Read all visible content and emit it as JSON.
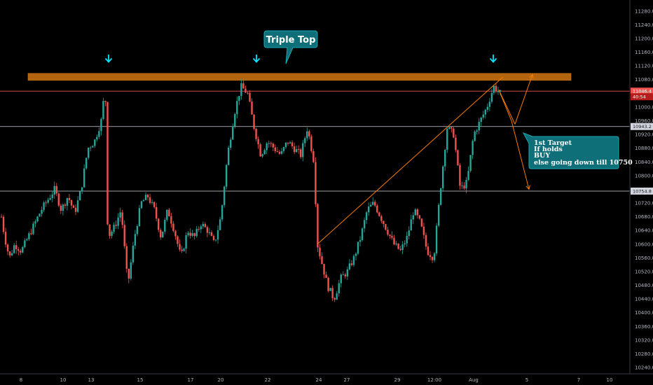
{
  "chart_data": {
    "type": "candlestick",
    "title": "",
    "ylim": [
      10230,
      11300
    ],
    "grid": false,
    "y_ticks": [
      10240,
      10280,
      10320,
      10360,
      10400,
      10440,
      10480,
      10520,
      10560,
      10600,
      10640,
      10680,
      10720,
      10760,
      10800,
      10840,
      10880,
      10920,
      10960,
      11000,
      11040,
      11080,
      11120,
      11160,
      11200,
      11240,
      11280
    ],
    "y_tick_labels": [
      "10240.0",
      "10280.0",
      "10320.0",
      "10360.0",
      "10400.0",
      "10440.0",
      "10480.0",
      "10520.0",
      "10560.0",
      "10600.0",
      "10640.0",
      "10680.0",
      "10720.0",
      "10760.0",
      "10800.0",
      "10840.0",
      "10880.0",
      "10920.0",
      "10960.0",
      "11000.0",
      "11040.0",
      "11080.0",
      "11120.0",
      "11160.0",
      "11200.0",
      "11240.0",
      "11280.0"
    ],
    "x_tick_labels": [
      "8",
      "10",
      "13",
      "15",
      "17",
      "20",
      "22",
      "24",
      "27",
      "29",
      "12:00",
      "Aug",
      "5",
      "7",
      "10"
    ],
    "path_points": [
      [
        0,
        10680
      ],
      [
        0.5,
        10620
      ],
      [
        1.2,
        10560
      ],
      [
        2,
        10600
      ],
      [
        3,
        10580
      ],
      [
        4,
        10620
      ],
      [
        5,
        10660
      ],
      [
        6,
        10700
      ],
      [
        7,
        10730
      ],
      [
        8,
        10760
      ],
      [
        9,
        10700
      ],
      [
        10,
        10740
      ],
      [
        11,
        10690
      ],
      [
        12,
        10760
      ],
      [
        13,
        10880
      ],
      [
        14,
        10900
      ],
      [
        15,
        10960
      ],
      [
        15.6,
        11060
      ],
      [
        16,
        10620
      ],
      [
        17,
        10650
      ],
      [
        18,
        10700
      ],
      [
        19,
        10480
      ],
      [
        20,
        10620
      ],
      [
        21,
        10720
      ],
      [
        22,
        10740
      ],
      [
        23,
        10700
      ],
      [
        24,
        10620
      ],
      [
        25,
        10700
      ],
      [
        26,
        10640
      ],
      [
        27,
        10560
      ],
      [
        28,
        10640
      ],
      [
        29,
        10620
      ],
      [
        30,
        10660
      ],
      [
        31,
        10640
      ],
      [
        32,
        10600
      ],
      [
        33,
        10680
      ],
      [
        34,
        10860
      ],
      [
        35,
        10980
      ],
      [
        36,
        11060
      ],
      [
        37,
        11040
      ],
      [
        38,
        10940
      ],
      [
        39,
        10860
      ],
      [
        40,
        10900
      ],
      [
        41,
        10880
      ],
      [
        42,
        10860
      ],
      [
        43,
        10900
      ],
      [
        44,
        10880
      ],
      [
        45,
        10860
      ],
      [
        46,
        10940
      ],
      [
        47,
        10840
      ],
      [
        47.5,
        10600
      ],
      [
        48,
        10560
      ],
      [
        49,
        10480
      ],
      [
        50,
        10440
      ],
      [
        51,
        10500
      ],
      [
        52,
        10520
      ],
      [
        53,
        10560
      ],
      [
        54,
        10620
      ],
      [
        55,
        10700
      ],
      [
        56,
        10720
      ],
      [
        57,
        10680
      ],
      [
        58,
        10640
      ],
      [
        59,
        10600
      ],
      [
        60,
        10580
      ],
      [
        61,
        10620
      ],
      [
        62,
        10700
      ],
      [
        63,
        10660
      ],
      [
        64,
        10580
      ],
      [
        65,
        10560
      ],
      [
        66,
        10760
      ],
      [
        67,
        10940
      ],
      [
        68,
        10920
      ],
      [
        69,
        10760
      ],
      [
        70,
        10780
      ],
      [
        71,
        10920
      ],
      [
        72,
        10960
      ],
      [
        73,
        11000
      ],
      [
        74,
        11060
      ],
      [
        75,
        11040
      ]
    ],
    "series": [
      {
        "values": [
          10760.0
        ]
      },
      {
        "values": [
          10950.0
        ]
      },
      {
        "values": [
          11088.0
        ]
      }
    ],
    "price_tags": [
      "11046.4",
      "40:54",
      "10943.2",
      "10754.8"
    ],
    "tag_values": [
      11046.4,
      11030.0,
      10943.2,
      10754.8
    ],
    "callout_label": "Triple Top",
    "note_lines": [
      "1st Target",
      "If holds",
      "BUY",
      "else going down till 10750"
    ],
    "colors": {
      "up": "#26a69a",
      "down": "#ef5350",
      "resistance_band": "#b2640f",
      "current_price_line": "#ef5350",
      "level_line": "#d1d4dc",
      "trend_line": "#f57c00",
      "arrow_marker": "#00e5ff",
      "callout_bg": "#0f6f78",
      "note_bg": "#0f6f78"
    },
    "icons": [
      "down-arrow-icon",
      "down-arrow-icon",
      "down-arrow-icon"
    ]
  }
}
